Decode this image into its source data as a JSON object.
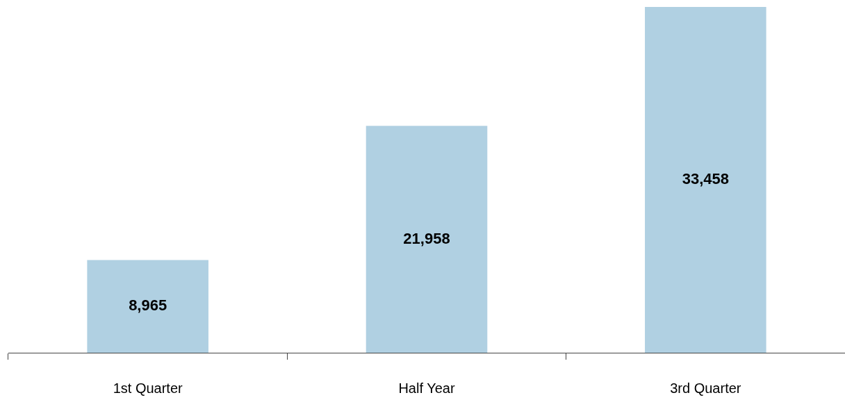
{
  "chart_data": {
    "type": "bar",
    "categories": [
      "1st Quarter",
      "Half Year",
      "3rd Quarter"
    ],
    "values": [
      8965,
      21958,
      33458
    ],
    "value_labels": [
      "8,965",
      "21,958",
      "33,458"
    ],
    "color": "#b0d0e2",
    "grid": false,
    "legend": false
  }
}
